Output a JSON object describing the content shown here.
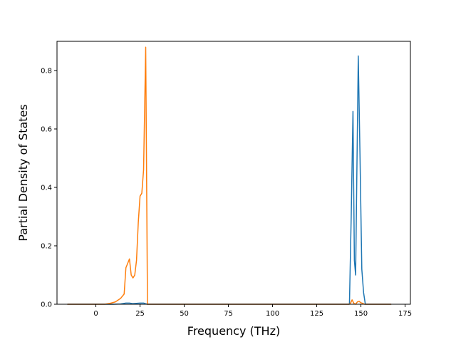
{
  "chart_data": {
    "type": "line",
    "title": "",
    "xlabel": "Frequency (THz)",
    "ylabel": "Partial Density of States",
    "xlim": [
      -22,
      178
    ],
    "ylim": [
      0,
      0.9
    ],
    "xticks": [
      0,
      25,
      50,
      75,
      100,
      125,
      150,
      175
    ],
    "xtick_labels": [
      "0",
      "25",
      "50",
      "75",
      "100",
      "125",
      "150",
      "175"
    ],
    "yticks": [
      0.0,
      0.2,
      0.4,
      0.6,
      0.8
    ],
    "ytick_labels": [
      "0.0",
      "0.2",
      "0.4",
      "0.6",
      "0.8"
    ],
    "grid": false,
    "legend": "none",
    "series": [
      {
        "color": "#1f77b4",
        "points": [
          [
            -16,
            0
          ],
          [
            10,
            0
          ],
          [
            14,
            0.001
          ],
          [
            17,
            0.004
          ],
          [
            19,
            0.004
          ],
          [
            21,
            0.002
          ],
          [
            23,
            0.003
          ],
          [
            25,
            0.004
          ],
          [
            27,
            0.004
          ],
          [
            28,
            0.002
          ],
          [
            29,
            0
          ],
          [
            140,
            0
          ],
          [
            143.5,
            0
          ],
          [
            144.5,
            0.3
          ],
          [
            145.5,
            0.66
          ],
          [
            146.3,
            0.15
          ],
          [
            147,
            0.1
          ],
          [
            148.5,
            0.85
          ],
          [
            149.5,
            0.5
          ],
          [
            150.5,
            0.12
          ],
          [
            151.5,
            0.04
          ],
          [
            152.5,
            0
          ],
          [
            167,
            0
          ]
        ]
      },
      {
        "color": "#ff7f0e",
        "points": [
          [
            -16,
            0
          ],
          [
            5,
            0
          ],
          [
            8,
            0.003
          ],
          [
            11,
            0.008
          ],
          [
            14,
            0.02
          ],
          [
            16,
            0.035
          ],
          [
            17,
            0.125
          ],
          [
            18,
            0.14
          ],
          [
            19,
            0.155
          ],
          [
            20,
            0.1
          ],
          [
            21,
            0.09
          ],
          [
            22,
            0.1
          ],
          [
            23,
            0.15
          ],
          [
            24,
            0.28
          ],
          [
            25,
            0.37
          ],
          [
            26,
            0.38
          ],
          [
            27,
            0.46
          ],
          [
            28.2,
            0.88
          ],
          [
            29.2,
            0
          ],
          [
            30,
            0
          ],
          [
            143,
            0
          ],
          [
            144,
            0.002
          ],
          [
            145,
            0.015
          ],
          [
            146,
            0.003
          ],
          [
            147,
            0
          ],
          [
            148,
            0.008
          ],
          [
            149,
            0.01
          ],
          [
            150,
            0.005
          ],
          [
            151,
            0.003
          ],
          [
            152,
            0
          ],
          [
            167,
            0
          ]
        ]
      }
    ]
  }
}
